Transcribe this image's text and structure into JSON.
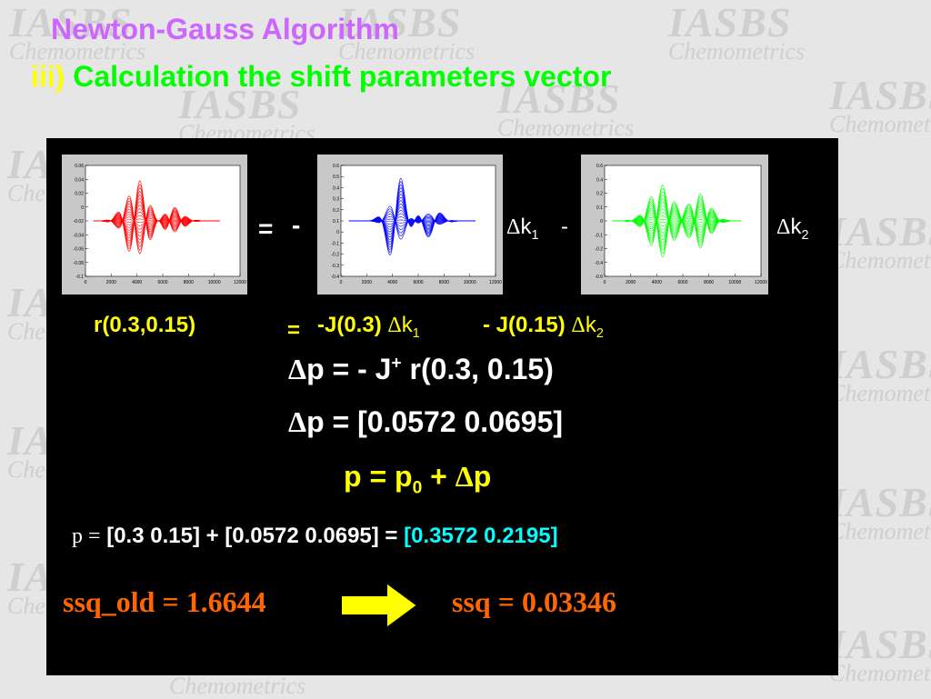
{
  "header": {
    "title": "Newton-Gauss Algorithm",
    "subtitle_prefix": "iii)",
    "subtitle": "Calculation the shift parameters vector"
  },
  "watermark": {
    "line1": "IASBS",
    "line2": "Chemometrics"
  },
  "colors": {
    "background": "#e6e6e6",
    "board": "#000000",
    "title": "#cc66ff",
    "subtitle": "#00ff00",
    "prefix": "#ffff00",
    "residual_plot": "#ff0000",
    "jacobian1_plot": "#0000ff",
    "jacobian2_plot": "#00ff00",
    "result": "#00ffff",
    "ssq": "#ff6600",
    "arrow": "#ffff00"
  },
  "plots": {
    "residual": {
      "color": "#ff0000",
      "yticks": [
        "0.06",
        "0.04",
        "0.02",
        "0",
        "-0.02",
        "-0.04",
        "-0.06",
        "-0.08",
        "-0.1"
      ],
      "xticks": [
        "0",
        "2000",
        "4000",
        "6000",
        "8000",
        "10000",
        "12000"
      ]
    },
    "jacobian1": {
      "color": "#0000ff",
      "yticks": [
        "0.6",
        "0.5",
        "0.4",
        "0.3",
        "0.2",
        "0.1",
        "0",
        "-0.1",
        "-0.2",
        "-0.3",
        "-0.4"
      ],
      "xticks": [
        "0",
        "2000",
        "4000",
        "6000",
        "8000",
        "10000",
        "12000"
      ]
    },
    "jacobian2": {
      "color": "#00ff00",
      "yticks": [
        "0.6",
        "0.4",
        "0.2",
        "0.1",
        "0",
        "-0.1",
        "-0.2",
        "-0.4",
        "-0.6"
      ],
      "xticks": [
        "0",
        "2000",
        "4000",
        "6000",
        "8000",
        "10000",
        "12000"
      ]
    }
  },
  "row1": {
    "equals": "=",
    "minus1": "-",
    "dk1_delta": "Δ",
    "dk1_k": "k",
    "dk1_sub": "1",
    "minus2": "-",
    "dk2_delta": "Δ",
    "dk2_k": "k",
    "dk2_sub": "2"
  },
  "row2": {
    "residual": "r(0.3,0.15)",
    "equals": "=",
    "j1": "-J(0.3)",
    "delta1": "Δ",
    "k1": "k",
    "k1_sub": "1",
    "j2": "- J(0.15)",
    "delta2": "Δ",
    "k2": "k",
    "k2_sub": "2"
  },
  "equations": {
    "dp1_delta": "Δ",
    "dp1_rest": "p = - J",
    "dp1_sup": "+",
    "dp1_tail": " r(0.3, 0.15)",
    "dp2_delta": "Δ",
    "dp2_rest": "p = [0.0572  0.0695]",
    "p_update_a": "p = p",
    "p_update_sub": "0",
    "p_update_b": " + ",
    "p_update_delta": "Δ",
    "p_update_c": "p",
    "p_line_p": "p =",
    "p_line_sum": " [0.3 0.15] + [0.0572  0.0695]  =  ",
    "p_line_result": "[0.3572  0.2195]"
  },
  "ssq": {
    "old": "ssq_old = 1.6644",
    "new": "ssq = 0.03346"
  }
}
